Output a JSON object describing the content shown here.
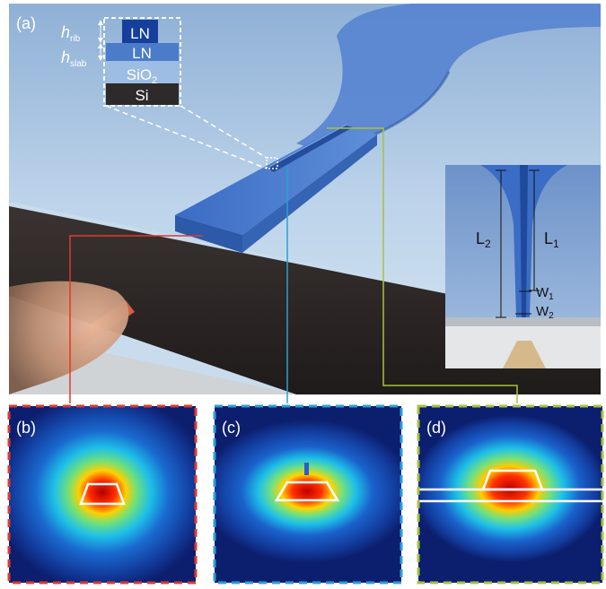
{
  "panels": {
    "a": "(a)",
    "b": "(b)",
    "c": "(c)",
    "d": "(d)"
  },
  "stack": {
    "layers": [
      "LN",
      "LN",
      "SiO",
      "Si"
    ],
    "sio2_subscript": "2"
  },
  "dimensions": {
    "h_rib": "h",
    "h_rib_sub": "rib",
    "h_slab": "h",
    "h_slab_sub": "slab"
  },
  "taper": {
    "L1": "L",
    "L1_sub": "1",
    "L2": "L",
    "L2_sub": "2",
    "W1": "W",
    "W1_sub": "1",
    "W2": "W",
    "W2_sub": "2"
  },
  "colors": {
    "waveguide": "#3f73c8",
    "background_sky": "#b8d0e8",
    "silicon": "#2b2624",
    "red_callout": "#e0392e",
    "blue_callout": "#2aa0d6",
    "green_callout": "#a8c23a",
    "mode_background": "#0c1f6e"
  }
}
